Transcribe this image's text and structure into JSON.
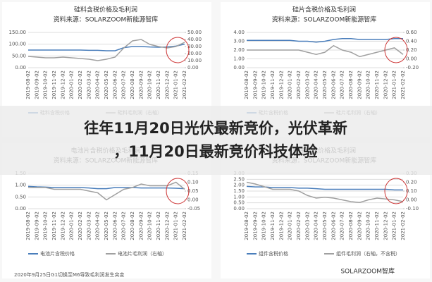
{
  "headline": [
    "往年11月20日光伏最新竞价，光伏革新",
    "，11月20日最新竞价科技体验"
  ],
  "caption": "2020年9月25日G1切换至M6导致毛利润发生突变",
  "watermark": "SOLARZOOM智库",
  "chart_data": [
    {
      "type": "line",
      "title": "硅料含税价格及毛利润",
      "subtitle": "资料来源：SOLARZOOM新能源智库",
      "categories": [
        "2019-08-02",
        "2019-09-02",
        "2019-10-02",
        "2019-11-02",
        "2019-12-02",
        "2020-01-02",
        "2020-02-02",
        "2020-03-02",
        "2020-04-02",
        "2020-05-02",
        "2020-06-02",
        "2020-07-02",
        "2020-08-02",
        "2020-09-02",
        "2020-10-02",
        "2020-11-02",
        "2020-12-02",
        "2021-01-02",
        "2021-02-02"
      ],
      "ylim": [
        0,
        150
      ],
      "yticks": [
        {
          "value": 0,
          "label": "0.00"
        },
        {
          "value": 50,
          "label": "50.00"
        },
        {
          "value": 100,
          "label": "100.00"
        },
        {
          "value": 150,
          "label": "150.00"
        }
      ],
      "y2lim": [
        0,
        50
      ],
      "y2ticks": [
        {
          "value": 0,
          "label": "0.00"
        },
        {
          "value": 10,
          "label": "10.00"
        },
        {
          "value": 20,
          "label": "20.00"
        },
        {
          "value": 30,
          "label": "30.00"
        },
        {
          "value": 40,
          "label": "40.00"
        },
        {
          "value": 50,
          "label": "50.00"
        }
      ],
      "series": [
        {
          "name": "硅料含税价格",
          "color": "#4a7ebb",
          "values": [
            75,
            75,
            75,
            75,
            75,
            75,
            75,
            74,
            74,
            72,
            72,
            85,
            90,
            90,
            88,
            87,
            88,
            92,
            100
          ]
        },
        {
          "name": "硅料毛利润（右轴）",
          "color": "#a0a0a0",
          "axis": "y2",
          "values": [
            16,
            15,
            14,
            14,
            15,
            14,
            13,
            12,
            10,
            12,
            15,
            28,
            38,
            40,
            33,
            30,
            28,
            30,
            36
          ]
        }
      ]
    },
    {
      "type": "line",
      "title": "硅片含税价格及毛利润",
      "subtitle": "资料来源：SOLARZOOM新能源智库",
      "categories": [
        "2019-08-02",
        "2019-09-02",
        "2019-10-02",
        "2019-11-02",
        "2019-12-02",
        "2020-01-02",
        "2020-02-02",
        "2020-03-02",
        "2020-04-02",
        "2020-05-02",
        "2020-06-02",
        "2020-07-02",
        "2020-08-02",
        "2020-09-02",
        "2020-10-02",
        "2020-11-02",
        "2020-12-02",
        "2021-01-02",
        "2021-02-02"
      ],
      "ylim": [
        0,
        4
      ],
      "yticks": [
        {
          "value": 0,
          "label": "0.00"
        },
        {
          "value": 1,
          "label": "1.00"
        },
        {
          "value": 2,
          "label": "2.00"
        },
        {
          "value": 3,
          "label": "3.00"
        },
        {
          "value": 4,
          "label": "4.00"
        }
      ],
      "y2lim": [
        -0.2,
        0.6
      ],
      "y2ticks": [
        {
          "value": -0.2,
          "label": "-0.20"
        },
        {
          "value": 0,
          "label": "0.00"
        },
        {
          "value": 0.2,
          "label": "0.20"
        },
        {
          "value": 0.4,
          "label": "0.40"
        },
        {
          "value": 0.6,
          "label": "0.60"
        }
      ],
      "series": [
        {
          "name": "硅片含税价格",
          "color": "#4a7ebb",
          "values": [
            3.1,
            3.1,
            3.1,
            3.1,
            3.1,
            3.1,
            3.0,
            3.0,
            2.9,
            3.0,
            3.2,
            3.3,
            3.3,
            3.2,
            3.2,
            3.2,
            3.2,
            3.3,
            3.3
          ]
        },
        {
          "name": "硅片毛利润（右轴）",
          "color": "#a0a0a0",
          "axis": "y2",
          "values": [
            0.2,
            0.2,
            0.2,
            0.2,
            0.2,
            0.2,
            0.2,
            0.15,
            0.1,
            0.15,
            0.3,
            0.2,
            0.15,
            0.05,
            0.1,
            0.15,
            0.2,
            0.25,
            0.1
          ]
        }
      ]
    },
    {
      "type": "line",
      "title": "电池片含税价格及毛利润",
      "subtitle": "资料来源：SOLARZOOM新能源智库",
      "categories": [
        "2019-08-02",
        "2019-09-02",
        "2019-10-02",
        "2019-11-02",
        "2019-12-02",
        "2020-01-02",
        "2020-02-02",
        "2020-03-02",
        "2020-04-02",
        "2020-05-02",
        "2020-06-02",
        "2020-07-02",
        "2020-08-02",
        "2020-09-02",
        "2020-10-02",
        "2020-11-02",
        "2020-12-02",
        "2021-01-02",
        "2021-02-02"
      ],
      "ylim": [
        0,
        1.5
      ],
      "yticks": [
        {
          "value": 0,
          "label": "0.00"
        },
        {
          "value": 0.5,
          "label": "0.50"
        },
        {
          "value": 1,
          "label": "1.00"
        },
        {
          "value": 1.5,
          "label": "1.50"
        }
      ],
      "y2lim": [
        -0.05,
        0.15
      ],
      "y2ticks": [
        {
          "value": -0.05,
          "label": "-0.05"
        },
        {
          "value": 0,
          "label": "0.00"
        },
        {
          "value": 0.05,
          "label": "0.05"
        },
        {
          "value": 0.1,
          "label": "0.10"
        },
        {
          "value": 0.15,
          "label": "0.15"
        }
      ],
      "series": [
        {
          "name": "电池片含税价格",
          "color": "#4a7ebb",
          "values": [
            0.95,
            0.93,
            0.92,
            0.9,
            0.9,
            0.9,
            0.9,
            0.88,
            0.85,
            0.85,
            0.9,
            0.9,
            0.9,
            0.88,
            0.88,
            0.88,
            0.88,
            0.87,
            0.85
          ]
        },
        {
          "name": "电池片毛利润（右轴）",
          "color": "#a0a0a0",
          "axis": "y2",
          "values": [
            0.07,
            0.07,
            0.07,
            0.06,
            0.06,
            0.06,
            0.06,
            0.05,
            0.04,
            0.0,
            0.03,
            0.06,
            0.07,
            0.09,
            0.08,
            0.08,
            0.08,
            0.1,
            0.06
          ]
        }
      ]
    },
    {
      "type": "line",
      "title": "组件含税价格及毛利润",
      "subtitle": "资料来源：SOLARZOOM新能源智库",
      "categories": [
        "2019-08-02",
        "2019-09-02",
        "2019-10-02",
        "2019-11-02",
        "2019-12-02",
        "2020-01-02",
        "2020-02-02",
        "2020-03-02",
        "2020-04-02",
        "2020-05-02",
        "2020-06-02",
        "2020-07-02",
        "2020-08-02",
        "2020-09-02",
        "2020-10-02",
        "2020-11-02",
        "2020-12-02",
        "2021-01-02",
        "2021-02-02"
      ],
      "ylim": [
        0,
        3
      ],
      "yticks": [
        {
          "value": 0,
          "label": "0.00"
        },
        {
          "value": 0.5,
          "label": "0.50"
        },
        {
          "value": 1,
          "label": "1.00"
        },
        {
          "value": 1.5,
          "label": "1.50"
        },
        {
          "value": 2,
          "label": "2.00"
        },
        {
          "value": 2.5,
          "label": "2.50"
        },
        {
          "value": 3,
          "label": "3.00"
        }
      ],
      "y2lim": [
        -0.1,
        0.3
      ],
      "y2ticks": [
        {
          "value": -0.1,
          "label": "-0.10"
        },
        {
          "value": 0,
          "label": "0.00"
        },
        {
          "value": 0.1,
          "label": "0.10"
        },
        {
          "value": 0.2,
          "label": "0.20"
        },
        {
          "value": 0.3,
          "label": "0.30"
        }
      ],
      "series": [
        {
          "name": "组件含税价格",
          "color": "#4a7ebb",
          "values": [
            1.9,
            1.85,
            1.85,
            1.8,
            1.8,
            1.8,
            1.75,
            1.75,
            1.7,
            1.65,
            1.65,
            1.65,
            1.65,
            1.65,
            1.65,
            1.65,
            1.65,
            1.6,
            1.6
          ]
        },
        {
          "name": "组件毛利润（右轴，不含税）",
          "color": "#a0a0a0",
          "axis": "y2",
          "values": [
            0.2,
            0.18,
            0.15,
            0.12,
            0.12,
            0.12,
            0.1,
            0.05,
            0.02,
            0.03,
            0.02,
            0.0,
            -0.02,
            -0.03,
            0.0,
            0.02,
            0.01,
            0.0,
            -0.02
          ]
        }
      ]
    }
  ]
}
